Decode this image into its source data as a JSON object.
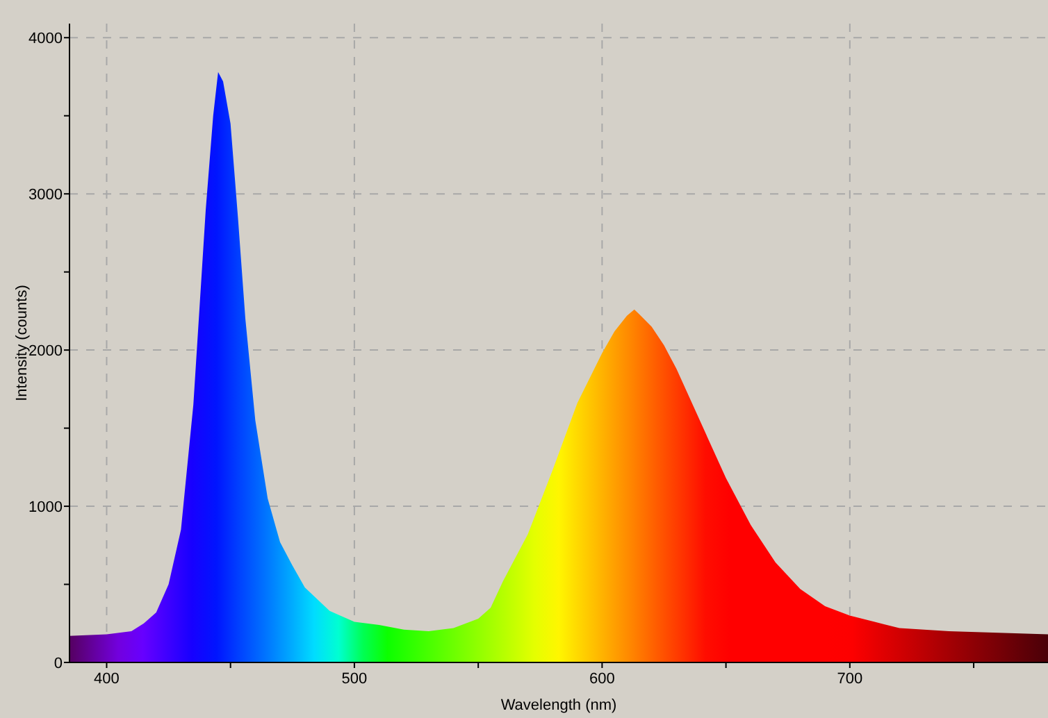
{
  "chart_data": {
    "type": "area",
    "xlabel": "Wavelength (nm)",
    "ylabel": "Intensity (counts)",
    "xlim": [
      385,
      780
    ],
    "ylim": [
      0,
      4090
    ],
    "xticks": [
      400,
      {
        "value": 450,
        "label": null
      },
      500,
      {
        "value": 550,
        "label": null
      },
      600,
      {
        "value": 650,
        "label": null
      },
      700,
      {
        "value": 750,
        "label": null
      }
    ],
    "yticks": [
      0,
      {
        "value": 500,
        "label": null
      },
      1000,
      {
        "value": 1500,
        "label": null
      },
      2000,
      {
        "value": 2500,
        "label": null
      },
      3000,
      {
        "value": 3500,
        "label": null
      },
      4000
    ],
    "grid": true,
    "x": [
      385,
      400,
      410,
      415,
      420,
      425,
      430,
      435,
      440,
      443,
      445,
      447,
      450,
      453,
      456,
      460,
      465,
      470,
      475,
      480,
      490,
      500,
      510,
      520,
      530,
      540,
      550,
      555,
      560,
      570,
      580,
      590,
      600,
      605,
      610,
      613,
      615,
      620,
      625,
      630,
      640,
      650,
      660,
      670,
      680,
      690,
      700,
      710,
      720,
      740,
      760,
      780
    ],
    "series": [
      {
        "values": [
          170,
          180,
          200,
          250,
          320,
          500,
          850,
          1650,
          2900,
          3500,
          3780,
          3720,
          3450,
          2850,
          2200,
          1550,
          1050,
          770,
          620,
          480,
          330,
          260,
          240,
          210,
          200,
          220,
          280,
          350,
          520,
          820,
          1230,
          1660,
          1980,
          2120,
          2220,
          2260,
          2230,
          2150,
          2030,
          1880,
          1530,
          1180,
          880,
          640,
          470,
          360,
          300,
          260,
          220,
          200,
          190,
          180
        ]
      }
    ]
  }
}
